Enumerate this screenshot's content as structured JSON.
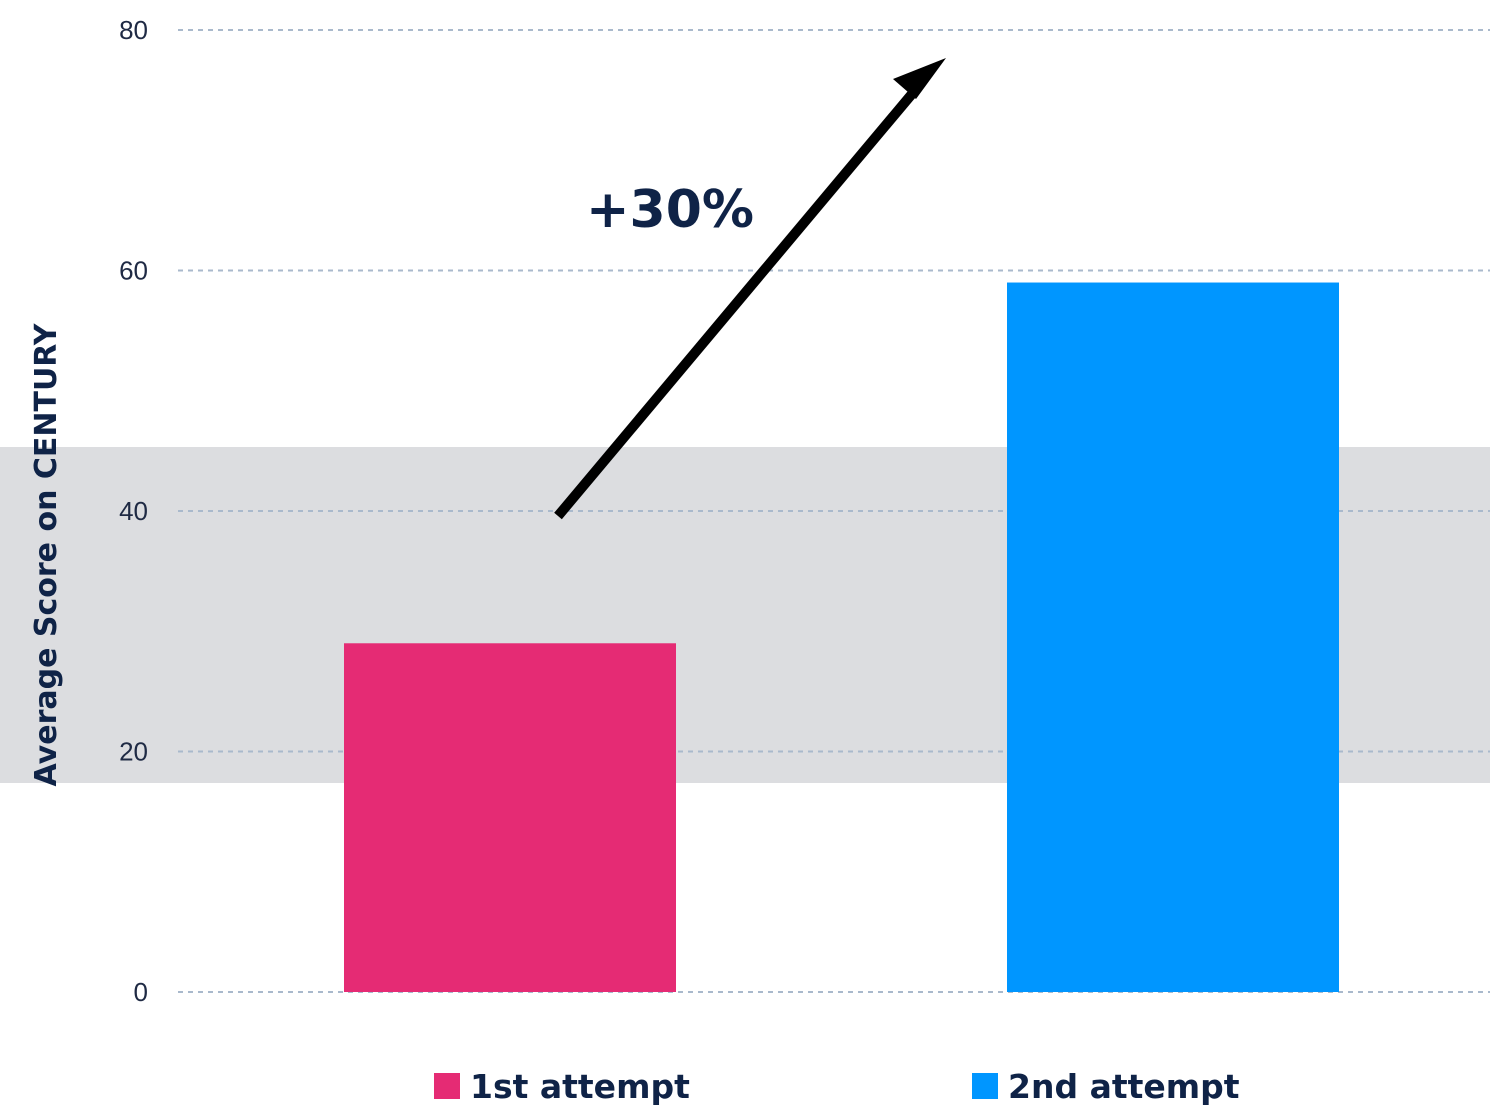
{
  "chart_data": {
    "type": "bar",
    "categories": [
      "1st attempt",
      "2nd attempt"
    ],
    "values": [
      29,
      59
    ],
    "colors": [
      "#e52b74",
      "#0096ff"
    ],
    "band_color": "#dcdde0",
    "arrow_color": "#000000",
    "title": "",
    "xlabel": "",
    "ylabel": "Average Score on CENTURY",
    "ylim": [
      0,
      80
    ],
    "yticks": [
      "0",
      "20",
      "40",
      "60",
      "80"
    ],
    "grid": true,
    "legend_placement": "bottom",
    "annotation": "+30%"
  }
}
